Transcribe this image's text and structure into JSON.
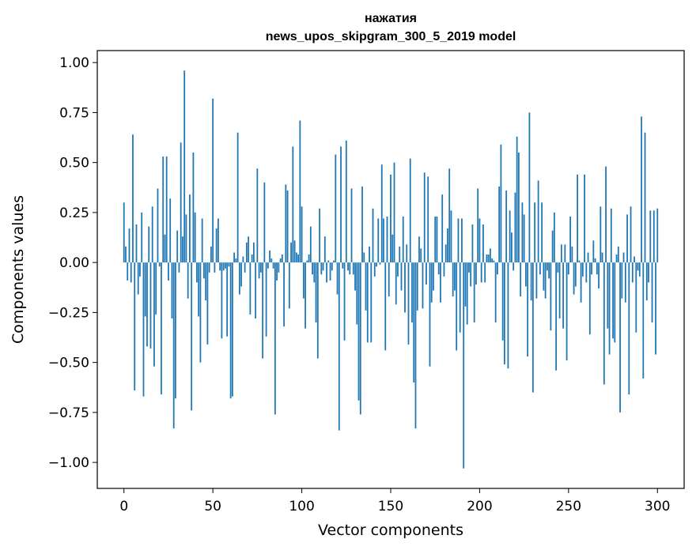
{
  "chart_data": {
    "type": "bar",
    "title": "нажатия",
    "subtitle": "news_upos_skipgram_300_5_2019 model",
    "xlabel": "Vector components",
    "ylabel": "Components values",
    "xlim": [
      -15,
      315
    ],
    "ylim": [
      -1.13,
      1.06
    ],
    "xticks": [
      0,
      50,
      100,
      150,
      200,
      250,
      300
    ],
    "yticks": [
      1.0,
      0.75,
      0.5,
      0.25,
      0.0,
      -0.25,
      -0.5,
      -0.75,
      -1.0
    ],
    "xtick_labels": [
      "0",
      "50",
      "100",
      "150",
      "200",
      "250",
      "300"
    ],
    "ytick_labels": [
      "1.00",
      "0.75",
      "0.50",
      "0.25",
      "0.00",
      "−0.25",
      "−0.50",
      "−0.75",
      "−1.00"
    ],
    "bar_color": "#1f77b4",
    "grid": false,
    "values": [
      0.3,
      0.08,
      -0.09,
      0.17,
      -0.1,
      0.64,
      -0.64,
      0.19,
      -0.16,
      -0.07,
      0.25,
      -0.67,
      -0.27,
      -0.42,
      0.18,
      -0.43,
      0.28,
      -0.52,
      -0.26,
      0.37,
      -0.02,
      -0.66,
      0.53,
      0.14,
      0.53,
      -0.09,
      0.32,
      -0.28,
      -0.83,
      -0.68,
      0.16,
      -0.05,
      0.6,
      0.13,
      0.96,
      0.24,
      -0.18,
      0.34,
      -0.74,
      0.55,
      0.25,
      -0.1,
      -0.27,
      -0.5,
      0.22,
      -0.08,
      -0.19,
      -0.41,
      -0.05,
      0.08,
      0.82,
      -0.05,
      0.17,
      0.22,
      -0.04,
      -0.38,
      -0.04,
      -0.03,
      -0.37,
      -0.02,
      -0.68,
      -0.67,
      0.05,
      0.02,
      0.65,
      -0.16,
      -0.12,
      0.03,
      -0.05,
      0.1,
      0.13,
      -0.26,
      0.04,
      0.1,
      -0.28,
      0.47,
      -0.08,
      -0.05,
      -0.48,
      0.4,
      -0.37,
      -0.03,
      0.06,
      0.02,
      -0.03,
      -0.76,
      -0.09,
      -0.05,
      0.02,
      0.04,
      -0.32,
      0.39,
      0.36,
      -0.23,
      0.1,
      0.58,
      0.11,
      0.05,
      0.04,
      0.71,
      0.28,
      -0.18,
      -0.33,
      0.01,
      0.04,
      0.18,
      -0.06,
      -0.1,
      -0.3,
      -0.48,
      0.27,
      -0.06,
      -0.04,
      0.13,
      -0.1,
      0.01,
      -0.09,
      -0.04,
      0.01,
      0.54,
      -0.16,
      -0.84,
      0.58,
      -0.03,
      -0.39,
      0.61,
      -0.04,
      -0.06,
      0.37,
      -0.06,
      -0.14,
      -0.31,
      -0.69,
      -0.76,
      0.38,
      0.05,
      -0.24,
      -0.4,
      0.08,
      -0.4,
      0.27,
      -0.07,
      -0.02,
      0.22,
      -0.01,
      0.49,
      0.22,
      -0.44,
      0.23,
      -0.17,
      0.44,
      0.14,
      0.5,
      -0.21,
      -0.07,
      0.08,
      -0.14,
      0.23,
      -0.25,
      0.09,
      -0.41,
      0.52,
      -0.3,
      -0.6,
      -0.83,
      -0.24,
      0.13,
      0.07,
      -0.23,
      0.45,
      -0.11,
      0.43,
      -0.52,
      -0.2,
      -0.14,
      0.23,
      0.23,
      -0.06,
      -0.2,
      0.34,
      -0.07,
      0.09,
      0.17,
      0.47,
      0.26,
      -0.17,
      -0.14,
      -0.44,
      0.22,
      -0.35,
      0.22,
      -1.03,
      -0.22,
      -0.31,
      -0.05,
      -0.12,
      0.19,
      -0.3,
      -0.11,
      0.37,
      0.22,
      -0.1,
      0.19,
      -0.1,
      0.04,
      0.04,
      0.07,
      0.02,
      0.01,
      -0.3,
      -0.06,
      0.38,
      0.59,
      -0.39,
      -0.51,
      0.36,
      -0.53,
      0.26,
      0.15,
      -0.04,
      0.35,
      0.63,
      0.55,
      -0.17,
      0.3,
      0.24,
      -0.12,
      -0.47,
      0.75,
      -0.19,
      -0.65,
      0.3,
      -0.18,
      0.41,
      -0.06,
      0.3,
      -0.14,
      -0.18,
      -0.04,
      -0.08,
      -0.34,
      0.16,
      0.25,
      -0.54,
      -0.05,
      -0.28,
      0.09,
      -0.33,
      0.09,
      -0.49,
      -0.06,
      0.23,
      0.08,
      -0.16,
      -0.12,
      0.44,
      0.01,
      -0.2,
      -0.07,
      0.44,
      -0.1,
      0.05,
      -0.36,
      -0.06,
      0.11,
      0.02,
      -0.06,
      -0.13,
      0.28,
      0.05,
      -0.61,
      0.48,
      -0.33,
      -0.46,
      0.27,
      -0.38,
      -0.4,
      0.04,
      0.08,
      -0.75,
      -0.18,
      0.05,
      -0.2,
      0.24,
      -0.66,
      0.28,
      -0.1,
      0.03,
      -0.35,
      -0.04,
      -0.07,
      0.73,
      -0.58,
      0.65,
      -0.19,
      -0.1,
      0.26,
      -0.3,
      0.26,
      -0.46,
      0.27
    ]
  }
}
